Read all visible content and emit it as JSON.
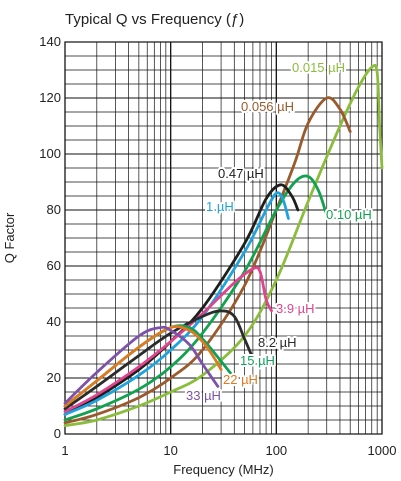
{
  "chart_data": {
    "type": "line",
    "title": "Typical Q vs Frequency (ƒ)",
    "xlabel": "Frequency (MHz)",
    "ylabel": "Q Factor",
    "x_scale": "log",
    "xlim": [
      1,
      1000
    ],
    "ylim": [
      0,
      140
    ],
    "x_ticks": [
      "1",
      "10",
      "100",
      "1000"
    ],
    "y_ticks": [
      "0",
      "20",
      "40",
      "60",
      "80",
      "100",
      "120",
      "140"
    ],
    "grid": true,
    "legend": "inline labels",
    "series": [
      {
        "name": "0.015 µH",
        "color": "#8bbd3c",
        "points": [
          [
            1,
            3
          ],
          [
            2,
            5
          ],
          [
            5,
            10
          ],
          [
            10,
            15
          ],
          [
            20,
            21
          ],
          [
            50,
            35
          ],
          [
            100,
            55
          ],
          [
            200,
            83
          ],
          [
            400,
            110
          ],
          [
            600,
            124
          ],
          [
            800,
            131
          ],
          [
            900,
            129
          ],
          [
            950,
            110
          ],
          [
            1000,
            95
          ]
        ]
      },
      {
        "name": "0.056 µH",
        "color": "#9a5a2c",
        "points": [
          [
            1,
            4
          ],
          [
            2,
            7
          ],
          [
            5,
            13
          ],
          [
            10,
            20
          ],
          [
            20,
            30
          ],
          [
            50,
            53
          ],
          [
            100,
            80
          ],
          [
            150,
            97
          ],
          [
            200,
            111
          ],
          [
            300,
            120
          ],
          [
            400,
            116
          ],
          [
            500,
            108
          ]
        ]
      },
      {
        "name": "0.10 µH",
        "color": "#12a14f",
        "points": [
          [
            1,
            5
          ],
          [
            2,
            9
          ],
          [
            5,
            16
          ],
          [
            10,
            24
          ],
          [
            20,
            36
          ],
          [
            50,
            58
          ],
          [
            100,
            80
          ],
          [
            150,
            90
          ],
          [
            200,
            92
          ],
          [
            250,
            87
          ],
          [
            300,
            78
          ]
        ]
      },
      {
        "name": "0.47 µH",
        "color": "#1e1e1e",
        "points": [
          [
            1,
            7
          ],
          [
            2,
            13
          ],
          [
            5,
            23
          ],
          [
            10,
            33
          ],
          [
            20,
            45
          ],
          [
            50,
            68
          ],
          [
            80,
            84
          ],
          [
            110,
            89
          ],
          [
            140,
            85
          ],
          [
            160,
            80
          ]
        ]
      },
      {
        "name": "1 µH",
        "color": "#1fa3dc",
        "points": [
          [
            1,
            7
          ],
          [
            2,
            12
          ],
          [
            5,
            21
          ],
          [
            10,
            30
          ],
          [
            20,
            42
          ],
          [
            50,
            65
          ],
          [
            80,
            80
          ],
          [
            100,
            86
          ],
          [
            115,
            84
          ],
          [
            130,
            77
          ]
        ]
      },
      {
        "name": "3.9 µH",
        "color": "#e0448e",
        "points": [
          [
            1,
            8
          ],
          [
            2,
            14
          ],
          [
            5,
            24
          ],
          [
            10,
            33
          ],
          [
            20,
            43
          ],
          [
            40,
            54
          ],
          [
            60,
            59
          ],
          [
            70,
            58
          ],
          [
            80,
            48
          ],
          [
            90,
            44
          ]
        ]
      },
      {
        "name": "8.2 µH",
        "color": "#2b2b2b",
        "points": [
          [
            1,
            9
          ],
          [
            2,
            17
          ],
          [
            5,
            28
          ],
          [
            10,
            36
          ],
          [
            20,
            42
          ],
          [
            30,
            44
          ],
          [
            40,
            42
          ],
          [
            50,
            34
          ],
          [
            60,
            27
          ]
        ]
      },
      {
        "name": "15 µH",
        "color": "#0fa15a",
        "points": [
          [
            1,
            10
          ],
          [
            2,
            19
          ],
          [
            5,
            31
          ],
          [
            10,
            38
          ],
          [
            15,
            38
          ],
          [
            20,
            34
          ],
          [
            30,
            26
          ],
          [
            40,
            20
          ]
        ]
      },
      {
        "name": "22 µH",
        "color": "#e07a20",
        "points": [
          [
            1,
            10
          ],
          [
            2,
            19
          ],
          [
            5,
            31
          ],
          [
            10,
            38
          ],
          [
            15,
            37
          ],
          [
            20,
            33
          ],
          [
            25,
            28
          ],
          [
            30,
            23
          ]
        ]
      },
      {
        "name": "33 µH",
        "color": "#7d52a8",
        "points": [
          [
            1,
            11
          ],
          [
            2,
            22
          ],
          [
            5,
            35
          ],
          [
            8,
            38
          ],
          [
            10,
            37
          ],
          [
            15,
            32
          ],
          [
            20,
            25
          ],
          [
            28,
            17
          ]
        ]
      }
    ]
  }
}
